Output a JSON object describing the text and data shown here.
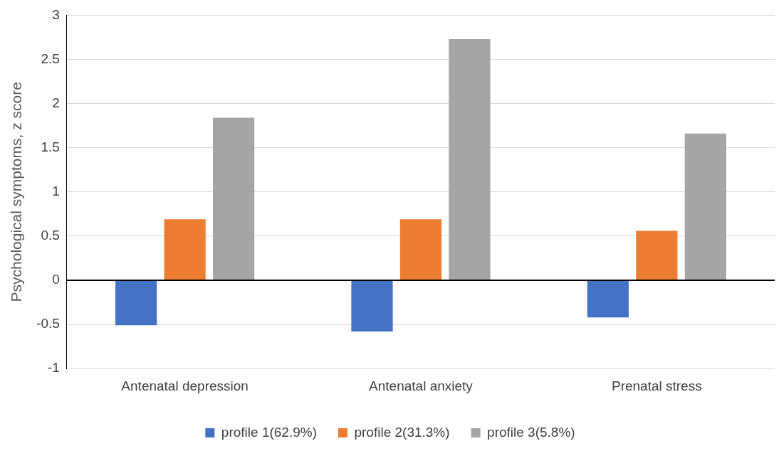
{
  "chart_data": {
    "type": "bar",
    "ylabel": "Psychological symptoms, z score",
    "categories": [
      "Antenatal depression",
      "Antenatal anxiety",
      "Prenatal stress"
    ],
    "series": [
      {
        "name": "profile 1(62.9%)",
        "color": "#4472c4",
        "values": [
          -0.51,
          -0.58,
          -0.42
        ]
      },
      {
        "name": "profile 2(31.3%)",
        "color": "#ed7d31",
        "values": [
          0.69,
          0.69,
          0.56
        ]
      },
      {
        "name": "profile 3(5.8%)",
        "color": "#a5a5a5",
        "values": [
          1.84,
          2.73,
          1.66
        ]
      }
    ],
    "ylim": [
      -1,
      3
    ],
    "yticks": [
      -1,
      -0.5,
      0,
      0.5,
      1,
      1.5,
      2,
      2.5,
      3
    ],
    "grid": "y",
    "legend": "bottom"
  }
}
